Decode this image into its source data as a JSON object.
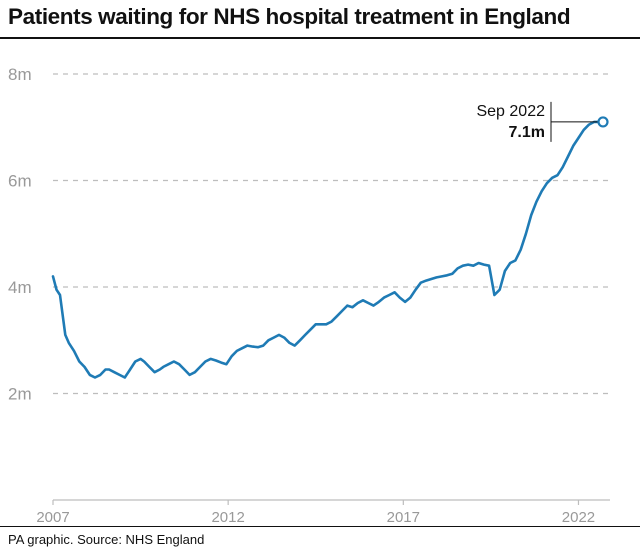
{
  "title": "Patients waiting for NHS hospital treatment in England",
  "source": "PA graphic. Source: NHS England",
  "colors": {
    "line": "#1f7bb5",
    "grid": "#bdbdbd",
    "tick": "#999999",
    "text": "#111111"
  },
  "chart_data": {
    "type": "line",
    "title": "Patients waiting for NHS hospital treatment in England",
    "xlabel": "",
    "ylabel": "",
    "xlim": [
      2007.0,
      2022.9
    ],
    "ylim": [
      0,
      8
    ],
    "grid": true,
    "y_ticks": [
      {
        "value": 2,
        "label": "2m"
      },
      {
        "value": 4,
        "label": "4m"
      },
      {
        "value": 6,
        "label": "6m"
      },
      {
        "value": 8,
        "label": "8m"
      }
    ],
    "x_ticks": [
      {
        "value": 2007,
        "label": "2007"
      },
      {
        "value": 2012,
        "label": "2012"
      },
      {
        "value": 2017,
        "label": "2017"
      },
      {
        "value": 2022,
        "label": "2022"
      }
    ],
    "series": [
      {
        "x": [
          2007.0,
          2007.1,
          2007.2,
          2007.35,
          2007.45,
          2007.6,
          2007.75,
          2007.9,
          2008.05,
          2008.2,
          2008.35,
          2008.5,
          2008.6,
          2008.75,
          2008.9,
          2009.05,
          2009.2,
          2009.35,
          2009.5,
          2009.6,
          2009.75,
          2009.9,
          2010.05,
          2010.15,
          2010.3,
          2010.45,
          2010.6,
          2010.75,
          2010.9,
          2011.05,
          2011.2,
          2011.35,
          2011.5,
          2011.65,
          2011.8,
          2011.95,
          2012.1,
          2012.25,
          2012.4,
          2012.55,
          2012.7,
          2012.85,
          2013.0,
          2013.15,
          2013.3,
          2013.45,
          2013.6,
          2013.75,
          2013.9,
          2014.05,
          2014.2,
          2014.35,
          2014.5,
          2014.65,
          2014.8,
          2014.95,
          2015.1,
          2015.25,
          2015.4,
          2015.55,
          2015.7,
          2015.85,
          2016.0,
          2016.15,
          2016.3,
          2016.45,
          2016.6,
          2016.75,
          2016.9,
          2017.05,
          2017.2,
          2017.35,
          2017.5,
          2017.65,
          2017.8,
          2017.95,
          2018.1,
          2018.25,
          2018.4,
          2018.55,
          2018.7,
          2018.85,
          2019.0,
          2019.15,
          2019.3,
          2019.45,
          2019.6,
          2019.75,
          2019.9,
          2020.05,
          2020.2,
          2020.35,
          2020.5,
          2020.65,
          2020.8,
          2020.95,
          2021.1,
          2021.25,
          2021.4,
          2021.55,
          2021.7,
          2021.85,
          2022.0,
          2022.15,
          2022.3,
          2022.45,
          2022.6,
          2022.7
        ],
        "y": [
          4.2,
          3.95,
          3.85,
          3.1,
          2.95,
          2.8,
          2.6,
          2.5,
          2.35,
          2.3,
          2.35,
          2.45,
          2.45,
          2.4,
          2.35,
          2.3,
          2.45,
          2.6,
          2.65,
          2.6,
          2.5,
          2.4,
          2.45,
          2.5,
          2.55,
          2.6,
          2.55,
          2.45,
          2.35,
          2.4,
          2.5,
          2.6,
          2.65,
          2.62,
          2.58,
          2.55,
          2.7,
          2.8,
          2.85,
          2.9,
          2.88,
          2.87,
          2.9,
          3.0,
          3.05,
          3.1,
          3.05,
          2.95,
          2.9,
          3.0,
          3.1,
          3.2,
          3.3,
          3.3,
          3.3,
          3.35,
          3.45,
          3.55,
          3.65,
          3.62,
          3.7,
          3.75,
          3.7,
          3.65,
          3.72,
          3.8,
          3.85,
          3.9,
          3.8,
          3.72,
          3.8,
          3.95,
          4.08,
          4.12,
          4.15,
          4.18,
          4.2,
          4.22,
          4.25,
          4.35,
          4.4,
          4.42,
          4.4,
          4.45,
          4.42,
          4.4,
          3.85,
          3.95,
          4.3,
          4.45,
          4.5,
          4.7,
          5.0,
          5.35,
          5.6,
          5.8,
          5.95,
          6.05,
          6.1,
          6.25,
          6.45,
          6.65,
          6.8,
          6.95,
          7.05,
          7.1,
          7.1,
          7.1
        ]
      }
    ],
    "annotation": {
      "date": "Sep 2022",
      "value": "7.1m",
      "x": 2022.7,
      "y": 7.1
    }
  }
}
